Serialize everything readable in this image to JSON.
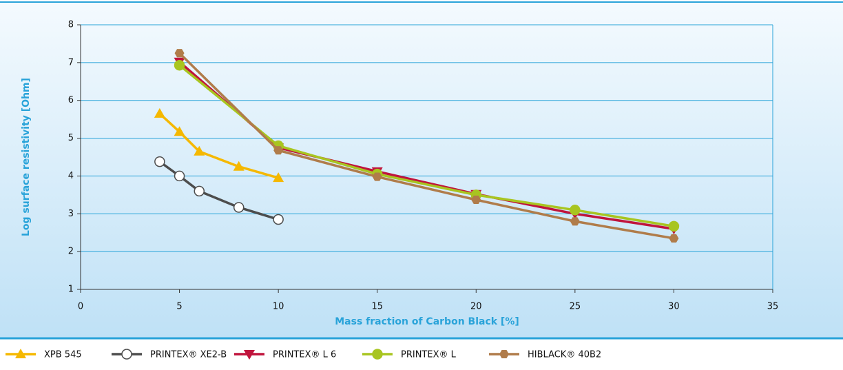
{
  "chart_data": {
    "type": "line",
    "xlabel": "Mass fraction of Carbon Black [%]",
    "ylabel": "Log surface resistivity [Ohm]",
    "xlim": [
      0,
      35
    ],
    "xticks": [
      0,
      5,
      10,
      15,
      20,
      25,
      30,
      35
    ],
    "ylim": [
      1,
      8
    ],
    "yticks": [
      1,
      2,
      3,
      4,
      5,
      6,
      7,
      8
    ],
    "grid": true,
    "legend": "bottom",
    "series": [
      {
        "name": "XPB 545",
        "color": "#f5b800",
        "marker": "triangle-up",
        "x": [
          4,
          5,
          6,
          8,
          10
        ],
        "values": [
          5.65,
          5.17,
          4.65,
          4.25,
          3.95
        ]
      },
      {
        "name": "PRINTEX® XE2-B",
        "color": "#4d4d4d",
        "marker": "circle-open",
        "x": [
          4,
          5,
          6,
          8,
          10
        ],
        "values": [
          4.38,
          4.0,
          3.6,
          3.17,
          2.85
        ]
      },
      {
        "name": "PRINTEX® L 6",
        "color": "#c0143c",
        "marker": "triangle-down",
        "x": [
          5,
          10,
          15,
          20,
          25,
          30
        ],
        "values": [
          7.02,
          4.75,
          4.12,
          3.52,
          3.0,
          2.6
        ]
      },
      {
        "name": "PRINTEX® L",
        "color": "#a8c520",
        "marker": "circle",
        "x": [
          5,
          10,
          15,
          20,
          25,
          30
        ],
        "values": [
          6.93,
          4.8,
          4.05,
          3.5,
          3.1,
          2.67
        ]
      },
      {
        "name": "HIBLACK® 40B2",
        "color": "#b07c4a",
        "marker": "hexagon",
        "x": [
          5,
          10,
          15,
          20,
          25,
          30
        ],
        "values": [
          7.25,
          4.68,
          3.98,
          3.37,
          2.8,
          2.35
        ]
      }
    ]
  }
}
